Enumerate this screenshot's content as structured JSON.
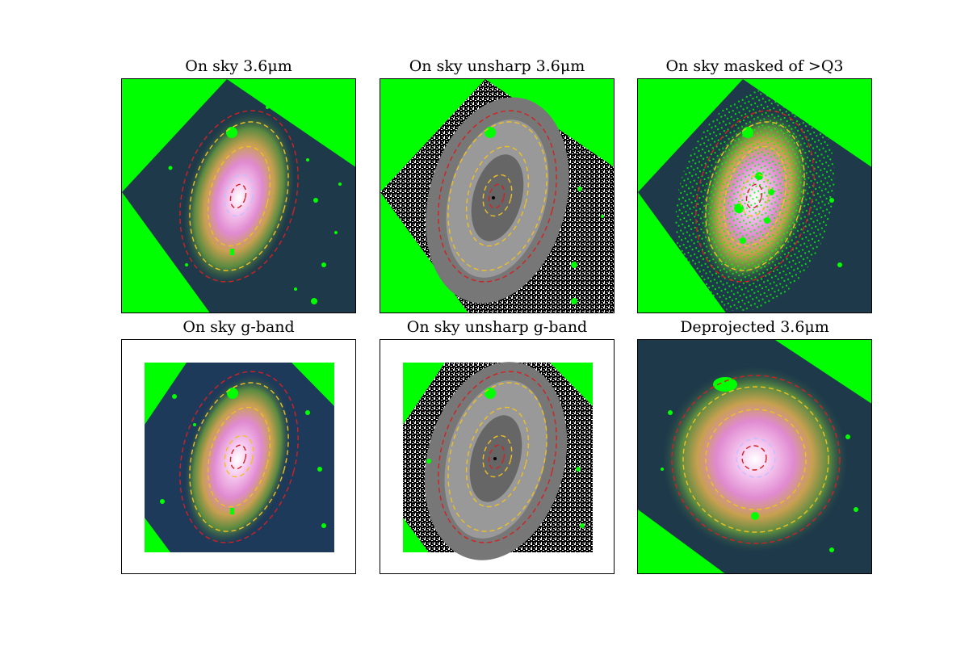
{
  "figure": {
    "panels": [
      {
        "id": "p1",
        "title": "On sky 3.6μm",
        "style": "color",
        "footprint": "rotated",
        "ellipse_angle": 15
      },
      {
        "id": "p2",
        "title": "On sky unsharp 3.6μm",
        "style": "unsharp",
        "footprint": "rotated",
        "ellipse_angle": 15
      },
      {
        "id": "p3",
        "title": "On sky masked of >Q3",
        "style": "masked",
        "footprint": "rotated",
        "ellipse_angle": 15
      },
      {
        "id": "p4",
        "title": "On sky g-band",
        "style": "color",
        "footprint": "square",
        "ellipse_angle": 15
      },
      {
        "id": "p5",
        "title": "On sky unsharp g-band",
        "style": "unsharp",
        "footprint": "square",
        "ellipse_angle": 15
      },
      {
        "id": "p6",
        "title": "Deprojected 3.6μm",
        "style": "deprojected",
        "footprint": "rotated",
        "ellipse_angle": 0
      }
    ],
    "colors": {
      "mask_green": "#00ff00",
      "outer_ellipse": "#d42020",
      "middle_ellipse": "#f0c020",
      "inner_ellipse": "#d42020",
      "background_dark": "#1e3a4a"
    }
  }
}
